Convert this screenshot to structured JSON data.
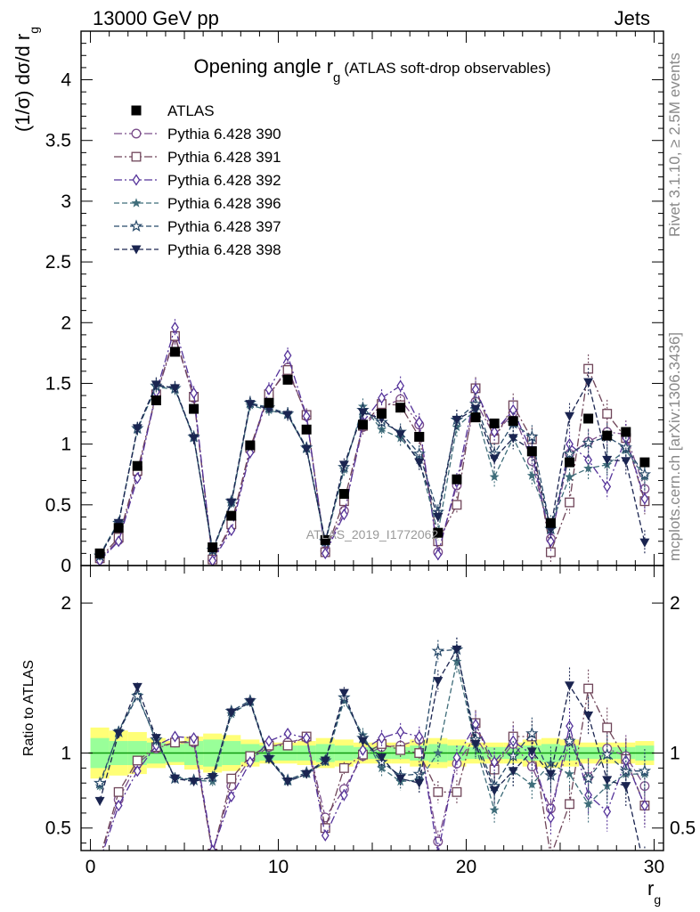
{
  "header": {
    "left": "13000 GeV pp",
    "right": "Jets"
  },
  "side_labels": {
    "rivet": "Rivet 3.1.10, ≥ 2.5M events",
    "mcplots": "mcplots.cern.ch [arXiv:1306.3436]"
  },
  "watermark": "ATLAS_2019_I1772062",
  "colors": {
    "atlas": "#000000",
    "p390": "#7a4d8a",
    "p391": "#6f4559",
    "p392": "#55339a",
    "p396": "#3f6d7a",
    "p397": "#284a6a",
    "p398": "#1a2450",
    "band_inner": "#99ff99",
    "band_outer": "#ffff77",
    "ratio_line": "#119911"
  },
  "chart_data": [
    {
      "type": "line",
      "title": "Opening angle r",
      "title_sub": "g",
      "title_note": "(ATLAS soft-drop observables)",
      "ylabel_prefix": "(1/σ) dσ/d r",
      "ylabel_sub": "g",
      "ylim": [
        0,
        4.4
      ],
      "yticks": [
        0,
        0.5,
        1,
        1.5,
        2,
        2.5,
        3,
        3.5,
        4
      ],
      "ytick_labels": [
        "0",
        "0.5",
        "1",
        "1.5",
        "2",
        "2.5",
        "3",
        "3.5",
        "4"
      ],
      "xlim": [
        -0.5,
        30.5
      ],
      "legend_position": "top-left",
      "x": [
        0.5,
        1.5,
        2.5,
        3.5,
        4.5,
        5.5,
        6.5,
        7.5,
        8.5,
        9.5,
        10.5,
        11.5,
        12.5,
        13.5,
        14.5,
        15.5,
        16.5,
        17.5,
        18.5,
        19.5,
        20.5,
        21.5,
        22.5,
        23.5,
        24.5,
        25.5,
        26.5,
        27.5,
        28.5,
        29.5
      ],
      "series": [
        {
          "name": "ATLAS",
          "key": "atlas",
          "marker": "square-filled",
          "dash": "none",
          "values": [
            0.1,
            0.31,
            0.82,
            1.36,
            1.76,
            1.29,
            0.15,
            0.41,
            0.99,
            1.34,
            1.53,
            1.12,
            0.21,
            0.59,
            1.16,
            1.25,
            1.3,
            1.06,
            0.27,
            0.71,
            1.22,
            1.17,
            1.19,
            0.94,
            0.35,
            0.85,
            1.21,
            1.07,
            1.1,
            0.85
          ]
        },
        {
          "name": "Pythia 6.428 390",
          "key": "p390",
          "marker": "circle-open",
          "dash": "9,3,2,3",
          "values": [
            0.05,
            0.21,
            0.76,
            1.4,
            1.88,
            1.38,
            0.05,
            0.32,
            0.95,
            1.4,
            1.63,
            1.23,
            0.12,
            0.45,
            1.14,
            1.3,
            1.37,
            1.16,
            0.11,
            0.66,
            1.35,
            1.07,
            1.26,
            0.86,
            0.22,
            0.92,
            1.02,
            1.1,
            1.08,
            0.63
          ]
        },
        {
          "name": "Pythia 6.428 391",
          "key": "p391",
          "marker": "square-open",
          "dash": "9,3,2,3",
          "values": [
            0.06,
            0.23,
            0.78,
            1.41,
            1.89,
            1.39,
            0.05,
            0.34,
            0.97,
            1.41,
            1.61,
            1.24,
            0.11,
            0.53,
            1.15,
            1.33,
            1.32,
            1.06,
            0.2,
            0.5,
            1.46,
            1.04,
            1.32,
            1.04,
            0.11,
            0.52,
            1.62,
            1.25,
            1.05,
            0.53
          ]
        },
        {
          "name": "Pythia 6.428 392",
          "key": "p392",
          "marker": "diamond-open",
          "dash": "9,3,2,3",
          "values": [
            0.04,
            0.2,
            0.72,
            1.43,
            1.96,
            1.42,
            0.04,
            0.29,
            0.93,
            1.45,
            1.73,
            1.23,
            0.1,
            0.42,
            1.18,
            1.38,
            1.48,
            1.18,
            0.09,
            0.69,
            1.45,
            1.1,
            1.28,
            0.93,
            0.2,
            1.0,
            0.87,
            0.65,
            1.05,
            0.55
          ]
        },
        {
          "name": "Pythia 6.428 396",
          "key": "p396",
          "marker": "star-filled",
          "dash": "6,3",
          "values": [
            0.09,
            0.36,
            1.12,
            1.47,
            1.45,
            1.05,
            0.12,
            0.51,
            1.32,
            1.28,
            1.24,
            0.96,
            0.19,
            0.79,
            1.31,
            1.12,
            1.05,
            0.87,
            0.27,
            1.14,
            1.28,
            0.73,
            1.05,
            0.74,
            0.33,
            0.73,
            0.8,
            0.83,
            0.95,
            0.73
          ]
        },
        {
          "name": "Pythia 6.428 397",
          "key": "p397",
          "marker": "star-open",
          "dash": "6,3",
          "values": [
            0.08,
            0.35,
            1.13,
            1.48,
            1.46,
            1.06,
            0.13,
            0.53,
            1.34,
            1.3,
            1.25,
            0.97,
            0.2,
            0.81,
            1.28,
            1.18,
            1.1,
            0.92,
            0.44,
            1.2,
            1.33,
            0.92,
            1.17,
            1.06,
            0.3,
            0.92,
            1.01,
            1.06,
            0.97,
            0.75
          ]
        },
        {
          "name": "Pythia 6.428 398",
          "key": "p398",
          "marker": "triangle-down-filled",
          "dash": "6,3",
          "values": [
            0.08,
            0.35,
            1.13,
            1.49,
            1.46,
            1.05,
            0.13,
            0.52,
            1.33,
            1.29,
            1.24,
            0.96,
            0.2,
            0.83,
            1.26,
            1.21,
            1.08,
            0.85,
            0.4,
            1.2,
            1.29,
            0.88,
            1.05,
            0.95,
            0.3,
            1.23,
            1.51,
            0.87,
            0.86,
            0.19
          ]
        }
      ]
    },
    {
      "type": "line",
      "ylabel": "Ratio to ATLAS",
      "xlabel": "r",
      "xlabel_sub": "g",
      "ylim": [
        0.35,
        2.25
      ],
      "yticks": [
        0.5,
        1,
        2
      ],
      "ytick_labels": [
        "0.5",
        "1",
        "2"
      ],
      "xlim": [
        -0.5,
        30.5
      ],
      "xticks": [
        0,
        10,
        20,
        30
      ],
      "xtick_labels": [
        "0",
        "10",
        "20",
        "30"
      ],
      "band_inner": [
        0.1,
        0.08,
        0.08,
        0.07,
        0.06,
        0.08,
        0.09,
        0.08,
        0.06,
        0.05,
        0.05,
        0.05,
        0.06,
        0.05,
        0.04,
        0.04,
        0.04,
        0.05,
        0.06,
        0.05,
        0.04,
        0.04,
        0.04,
        0.05,
        0.06,
        0.05,
        0.04,
        0.04,
        0.04,
        0.05
      ],
      "band_outer": [
        0.17,
        0.15,
        0.14,
        0.1,
        0.08,
        0.11,
        0.13,
        0.12,
        0.09,
        0.07,
        0.07,
        0.08,
        0.1,
        0.09,
        0.07,
        0.07,
        0.07,
        0.09,
        0.1,
        0.09,
        0.07,
        0.07,
        0.07,
        0.09,
        0.1,
        0.09,
        0.07,
        0.07,
        0.07,
        0.08
      ],
      "series": [
        {
          "name": "Pythia 6.428 390",
          "key": "p390",
          "values": [
            0.3,
            0.69,
            0.93,
            1.03,
            1.07,
            1.07,
            0.33,
            0.78,
            0.96,
            1.04,
            1.07,
            1.1,
            0.57,
            0.76,
            0.98,
            1.04,
            1.05,
            1.09,
            0.41,
            0.93,
            1.11,
            0.91,
            1.06,
            0.91,
            0.63,
            1.08,
            0.84,
            1.03,
            0.98,
            0.78
          ]
        },
        {
          "name": "Pythia 6.428 391",
          "key": "p391",
          "values": [
            0.3,
            0.74,
            0.95,
            1.04,
            1.07,
            1.08,
            0.33,
            0.83,
            0.98,
            1.05,
            1.05,
            1.11,
            0.5,
            0.9,
            0.99,
            1.06,
            1.02,
            1.0,
            0.74,
            0.74,
            1.2,
            0.89,
            1.11,
            1.11,
            0.31,
            0.66,
            1.43,
            1.17,
            0.96,
            0.65
          ]
        },
        {
          "name": "Pythia 6.428 392",
          "key": "p392",
          "values": [
            0.28,
            0.65,
            0.88,
            1.05,
            1.11,
            1.1,
            0.35,
            0.71,
            0.94,
            1.08,
            1.13,
            1.1,
            0.45,
            0.72,
            1.02,
            1.1,
            1.14,
            1.11,
            0.33,
            0.97,
            1.19,
            0.94,
            1.08,
            0.99,
            0.57,
            1.18,
            0.72,
            0.61,
            0.95,
            0.65
          ]
        },
        {
          "name": "Pythia 6.428 396",
          "key": "p396",
          "values": [
            0.78,
            1.15,
            1.39,
            1.08,
            0.84,
            0.82,
            0.81,
            1.26,
            1.34,
            0.96,
            0.81,
            0.86,
            0.94,
            1.35,
            1.12,
            0.9,
            0.81,
            0.82,
            1.0,
            1.61,
            1.05,
            0.62,
            0.88,
            0.79,
            0.93,
            0.86,
            0.66,
            0.78,
            0.86,
            0.86
          ]
        },
        {
          "name": "Pythia 6.428 397",
          "key": "p397",
          "values": [
            0.8,
            1.14,
            1.38,
            1.09,
            0.83,
            0.82,
            0.84,
            1.28,
            1.35,
            0.97,
            0.82,
            0.87,
            0.95,
            1.37,
            1.1,
            0.94,
            0.85,
            0.86,
            1.68,
            1.69,
            1.09,
            0.78,
            0.98,
            1.13,
            0.85,
            1.08,
            0.83,
            0.99,
            0.88,
            0.88
          ]
        },
        {
          "name": "Pythia 6.428 398",
          "key": "p398",
          "values": [
            0.68,
            1.13,
            1.44,
            1.1,
            0.83,
            0.81,
            0.84,
            1.27,
            1.34,
            0.96,
            0.81,
            0.86,
            0.95,
            1.4,
            1.08,
            0.97,
            0.83,
            0.8,
            1.48,
            1.69,
            1.06,
            0.75,
            0.88,
            1.01,
            0.86,
            1.45,
            1.25,
            0.82,
            0.78,
            0.23
          ]
        }
      ]
    }
  ]
}
